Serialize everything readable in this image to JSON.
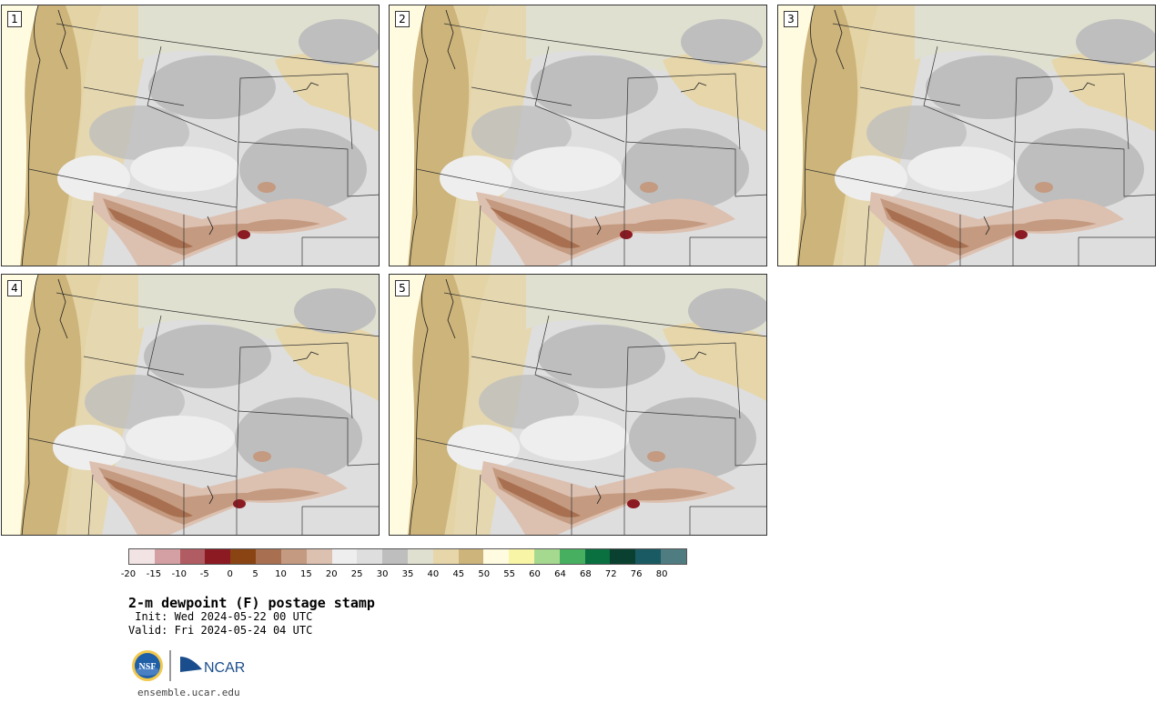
{
  "panels": [
    {
      "label": "1"
    },
    {
      "label": "2"
    },
    {
      "label": "3"
    },
    {
      "label": "4"
    },
    {
      "label": "5"
    }
  ],
  "colorbar": {
    "colors": [
      "#f2e4e4",
      "#d4a0a4",
      "#b05c62",
      "#8b1a22",
      "#8a4414",
      "#a87050",
      "#c49a80",
      "#dcc0b0",
      "#eeeeee",
      "#dedede",
      "#bebebe",
      "#e0e0d0",
      "#e6d6aa",
      "#cdb47a",
      "#fffbe0",
      "#f8f6a6",
      "#a6d990",
      "#46b060",
      "#0a7040",
      "#0a4030",
      "#1a5a62",
      "#4e7c80"
    ],
    "tick_labels": [
      "-20",
      "-15",
      "-10",
      "-5",
      "0",
      "5",
      "10",
      "15",
      "20",
      "25",
      "30",
      "35",
      "40",
      "45",
      "50",
      "55",
      "60",
      "64",
      "68",
      "72",
      "76",
      "80"
    ]
  },
  "title": "2-m dewpoint (F) postage stamp",
  "init": " Init: Wed 2024-05-22 00 UTC",
  "valid": "Valid: Fri 2024-05-24 04 UTC",
  "logos": {
    "nsf": "NSF",
    "ncar": "NCAR"
  },
  "site": "ensemble.ucar.edu"
}
